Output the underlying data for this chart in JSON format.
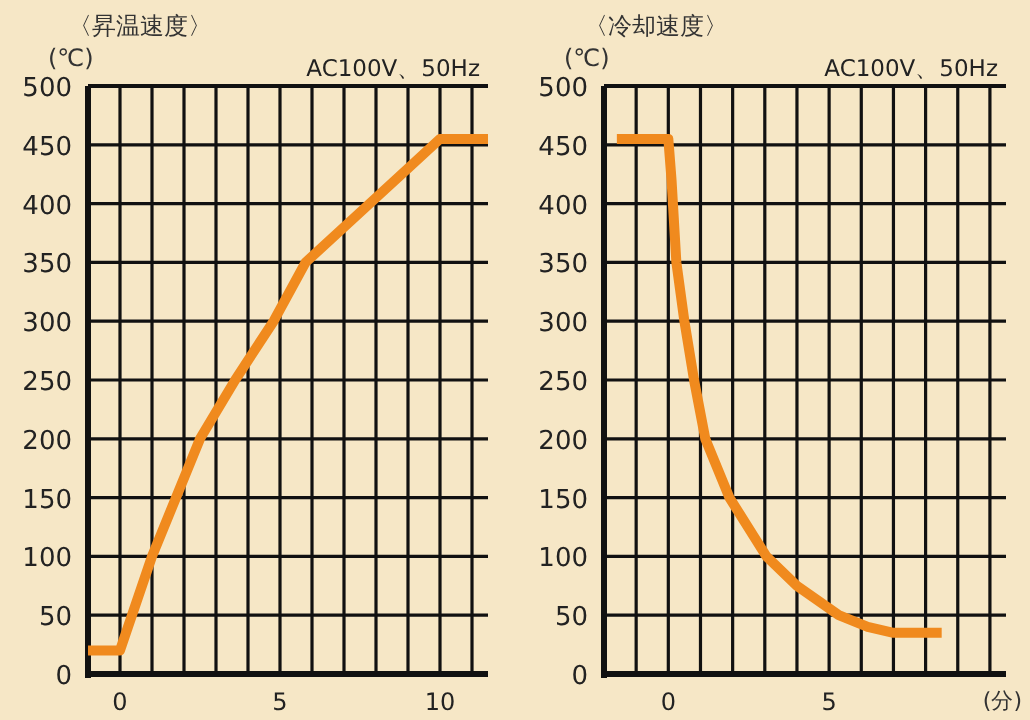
{
  "chart_data": [
    {
      "type": "line",
      "title": "〈昇温速度〉",
      "ylabel": "(℃)",
      "annotations": [
        "AC100V、50Hz"
      ],
      "grid": true,
      "line_style": "solid",
      "marker": "none",
      "xlim": [
        -1,
        11.5
      ],
      "ylim": [
        0,
        500
      ],
      "xticks": [
        {
          "value": 0,
          "label": "0"
        },
        {
          "value": 1,
          "label": null
        },
        {
          "value": 2,
          "label": null
        },
        {
          "value": 3,
          "label": null
        },
        {
          "value": 4,
          "label": null
        },
        {
          "value": 5,
          "label": "5"
        },
        {
          "value": 6,
          "label": null
        },
        {
          "value": 7,
          "label": null
        },
        {
          "value": 8,
          "label": null
        },
        {
          "value": 9,
          "label": null
        },
        {
          "value": 10,
          "label": "10"
        },
        {
          "value": 11,
          "label": null
        }
      ],
      "yticks": [
        0,
        50,
        100,
        150,
        200,
        250,
        300,
        350,
        400,
        450,
        500
      ],
      "series": [
        {
          "color": "#f08a1e",
          "x": [
            -1,
            0,
            1,
            1.75,
            2.5,
            3.6,
            4.8,
            5.8,
            7.8,
            9,
            10,
            11.5
          ],
          "values": [
            20,
            20,
            100,
            150,
            200,
            250,
            300,
            350,
            400,
            430,
            455,
            455
          ]
        }
      ]
    },
    {
      "type": "line",
      "title": "〈冷却速度〉",
      "ylabel": "(℃)",
      "xlabel": "(分)",
      "annotations": [
        "AC100V、50Hz"
      ],
      "grid": true,
      "line_style": "solid",
      "marker": "none",
      "xlim": [
        -2,
        10.5
      ],
      "ylim": [
        0,
        500
      ],
      "xticks": [
        {
          "value": -1,
          "label": null
        },
        {
          "value": 0,
          "label": "0"
        },
        {
          "value": 1,
          "label": null
        },
        {
          "value": 2,
          "label": null
        },
        {
          "value": 3,
          "label": null
        },
        {
          "value": 4,
          "label": null
        },
        {
          "value": 5,
          "label": "5"
        },
        {
          "value": 6,
          "label": null
        },
        {
          "value": 7,
          "label": null
        },
        {
          "value": 8,
          "label": null
        },
        {
          "value": 9,
          "label": null
        },
        {
          "value": 10,
          "label": null
        }
      ],
      "yticks": [
        0,
        50,
        100,
        150,
        200,
        250,
        300,
        350,
        400,
        450,
        500
      ],
      "series": [
        {
          "color": "#f08a1e",
          "x": [
            -1.6,
            0,
            0.1,
            0.25,
            0.5,
            0.8,
            1.15,
            1.9,
            3.05,
            4,
            5.3,
            6.2,
            7,
            8.5
          ],
          "values": [
            455,
            455,
            420,
            350,
            300,
            250,
            200,
            150,
            100,
            75,
            50,
            40,
            35,
            35
          ]
        }
      ]
    }
  ]
}
